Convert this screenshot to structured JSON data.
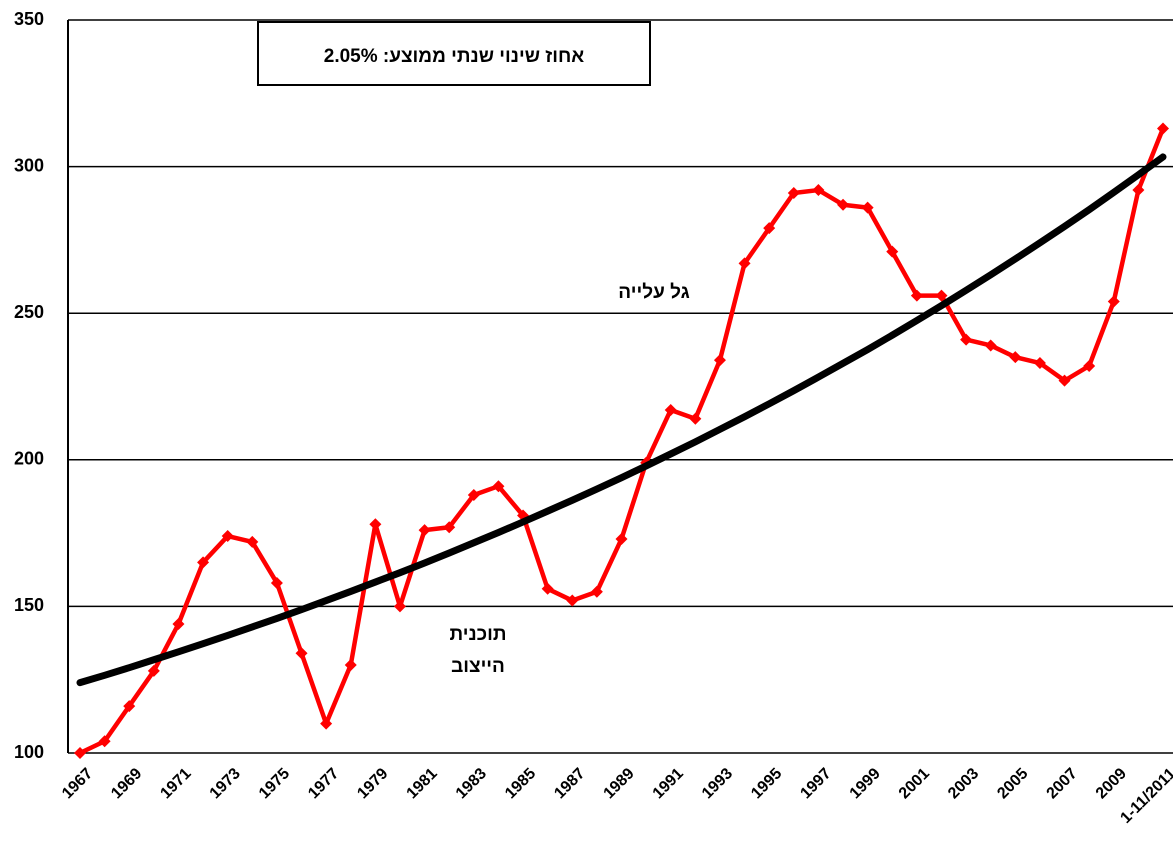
{
  "chart_data": {
    "type": "line",
    "categories": [
      "1967",
      null,
      "1969",
      null,
      "1971",
      null,
      "1973",
      null,
      "1975",
      null,
      "1977",
      null,
      "1979",
      null,
      "1981",
      null,
      "1983",
      null,
      "1985",
      null,
      "1987",
      null,
      "1989",
      null,
      "1991",
      null,
      "1993",
      null,
      "1995",
      null,
      "1997",
      null,
      "1999",
      null,
      "2001",
      null,
      "2003",
      null,
      "2005",
      null,
      "2007",
      null,
      "2009",
      null,
      "1-11/2011"
    ],
    "series": [
      {
        "color": "#ff0000",
        "marker": "diamond",
        "values": [
          100,
          104,
          116,
          128,
          144,
          165,
          174,
          172,
          158,
          134,
          110,
          130,
          178,
          150,
          176,
          177,
          188,
          191,
          181,
          156,
          152,
          155,
          173,
          199,
          217,
          214,
          234,
          267,
          279,
          291,
          292,
          287,
          286,
          271,
          256,
          256,
          241,
          239,
          235,
          233,
          227,
          232,
          254,
          292,
          313
        ]
      },
      {
        "color": "#000000",
        "values": [
          124,
          126.5,
          129.1,
          131.8,
          134.5,
          137.3,
          140.1,
          143.0,
          145.9,
          148.9,
          152.0,
          155.1,
          158.3,
          161.5,
          164.8,
          168.2,
          171.7,
          175.2,
          178.8,
          182.5,
          186.2,
          190.0,
          193.9,
          197.9,
          202.0,
          206.1,
          210.4,
          214.7,
          219.1,
          223.6,
          228.2,
          232.9,
          237.6,
          242.5,
          247.5,
          252.6,
          257.8,
          263.1,
          268.5,
          274.0,
          279.6,
          285.3,
          291.2,
          297.2,
          303.3
        ]
      }
    ],
    "ylim": [
      100,
      350
    ],
    "yticks": [
      100,
      150,
      200,
      250,
      300,
      350
    ],
    "grid": true,
    "annotations": [
      {
        "text": "אחוז שינוי שנתי ממוצע: 2.05%"
      },
      {
        "text": "גל עלייה"
      },
      {
        "lines": [
          "תוכנית",
          "הייצוב"
        ]
      }
    ]
  }
}
